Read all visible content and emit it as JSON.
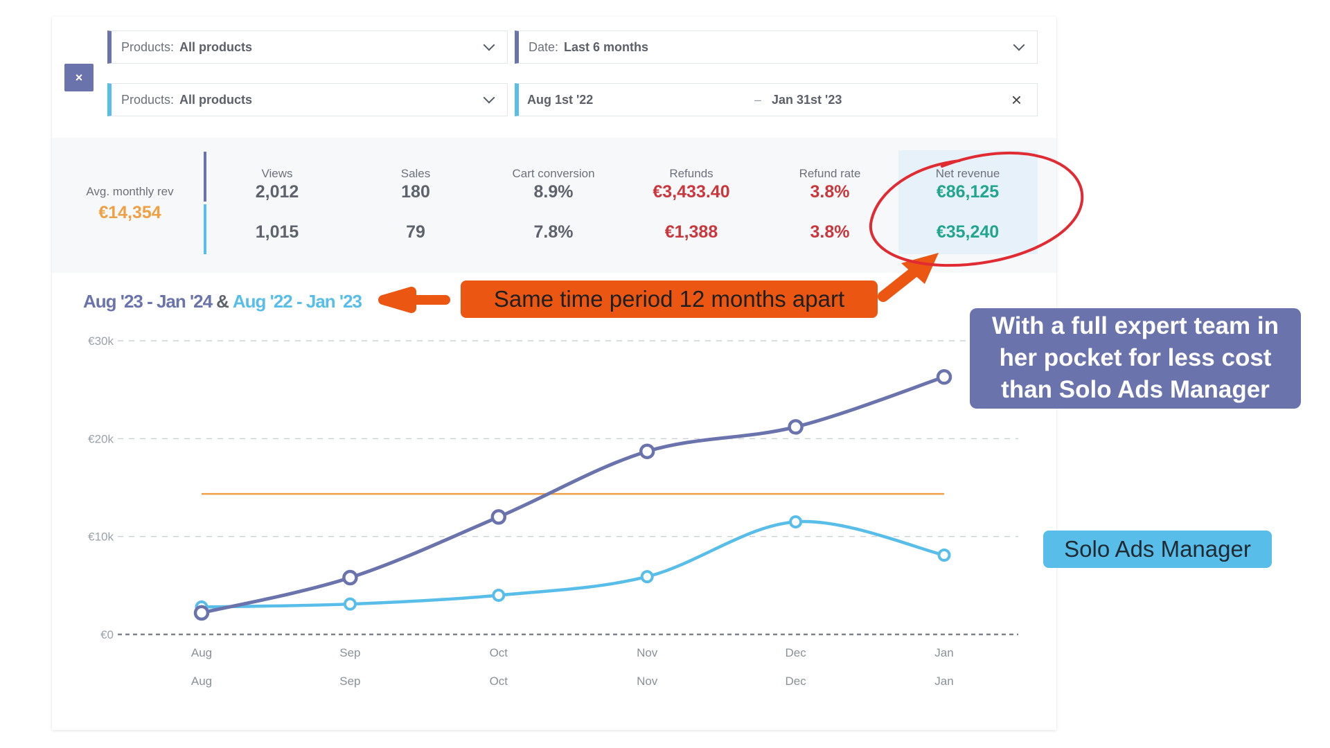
{
  "filters": {
    "clear_label": "×",
    "row1": {
      "label": "Products:",
      "value": "All products"
    },
    "row2": {
      "label": "Products:",
      "value": "All products"
    },
    "date": {
      "label": "Date:",
      "value": "Last 6 months"
    },
    "range": {
      "from": "Aug 1st '22",
      "sep": "–",
      "to": "Jan 31st '23"
    }
  },
  "stats": {
    "avg": {
      "title": "Avg. monthly rev",
      "value": "€14,354"
    },
    "columns": [
      {
        "header": "Views",
        "v1": "2,012",
        "v2": "1,015"
      },
      {
        "header": "Sales",
        "v1": "180",
        "v2": "79"
      },
      {
        "header": "Cart conversion",
        "v1": "8.9%",
        "v2": "7.8%"
      },
      {
        "header": "Refunds",
        "v1": "€3,433.40",
        "v2": "€1,388"
      },
      {
        "header": "Refund rate",
        "v1": "3.8%",
        "v2": "3.8%"
      },
      {
        "header": "Net revenue",
        "v1": "€86,125",
        "v2": "€35,240"
      }
    ]
  },
  "period": {
    "current": "Aug '23 - Jan '24",
    "amp": "&",
    "previous": "Aug '22 - Jan '23"
  },
  "annotations": {
    "orange": "Same time period 12 months apart",
    "purple": [
      "With a full expert team in",
      "her pocket for less cost",
      "than Solo Ads Manager"
    ],
    "blue": "Solo Ads Manager"
  },
  "colors": {
    "current": "#6b73ad",
    "previous": "#58bde8",
    "average": "#eea044",
    "orange": "#ec5613",
    "red": "#e12b33",
    "refunds": "#c9373c",
    "revenue": "#22a58e"
  },
  "chart_data": {
    "type": "line",
    "x": [
      "Aug",
      "Sep",
      "Oct",
      "Nov",
      "Dec",
      "Jan"
    ],
    "x_secondary": [
      "Aug",
      "Sep",
      "Oct",
      "Nov",
      "Dec",
      "Jan"
    ],
    "y_ticks": [
      "€0",
      "€10k",
      "€20k",
      "€30k"
    ],
    "ylim": [
      0,
      30000
    ],
    "grid": true,
    "series": [
      {
        "values": [
          2200,
          5800,
          12000,
          18700,
          21200,
          26300
        ],
        "color": "#6b73ad"
      },
      {
        "values": [
          2800,
          3100,
          4000,
          5900,
          11500,
          8100
        ],
        "color": "#58bde8"
      }
    ],
    "reference_line": 14354
  }
}
